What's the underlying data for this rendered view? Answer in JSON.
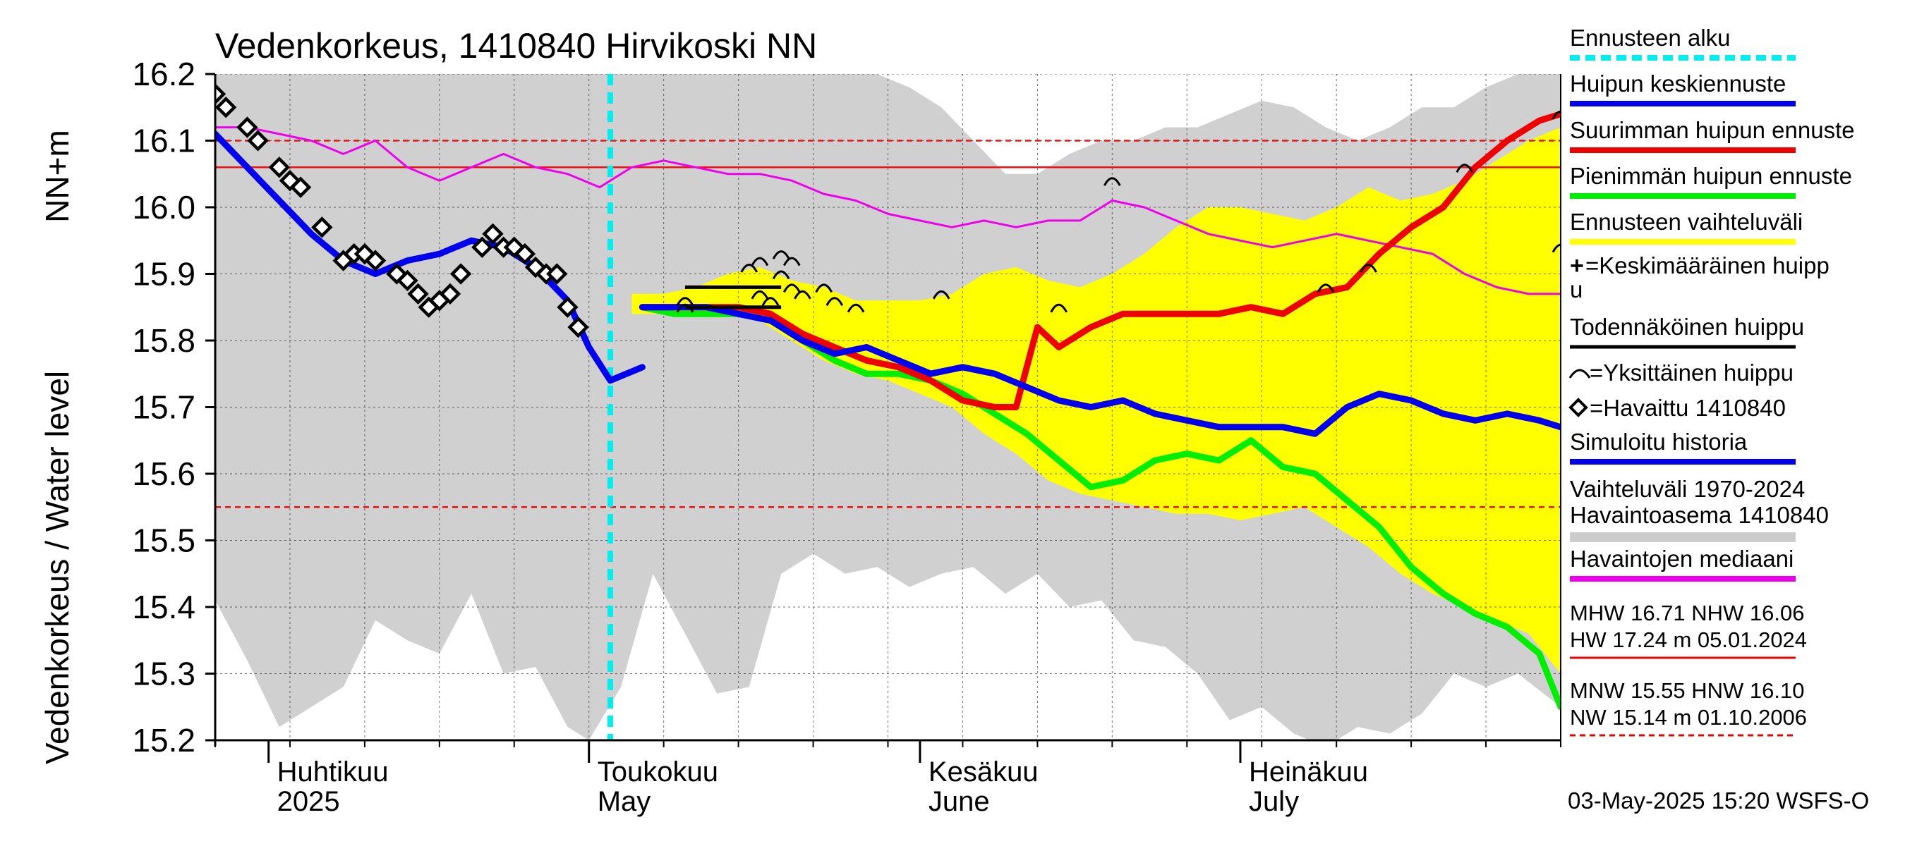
{
  "chart_data": {
    "type": "line",
    "title": "Vedenkorkeus, 1410840 Hirvikoski NN",
    "ylabel_primary": "Vedenkorkeus / Water level",
    "ylabel_unit": "NN+m",
    "y_ticks": [
      "15.2",
      "15.3",
      "15.4",
      "15.5",
      "15.6",
      "15.7",
      "15.8",
      "15.9",
      "16.0",
      "16.1",
      "16.2"
    ],
    "ylim": [
      15.2,
      16.2
    ],
    "xlim": [
      "2025-03-27",
      "2025-07-31"
    ],
    "x_month_labels": [
      {
        "fi": "Huhtikuu",
        "en": "2025",
        "date": "2025-04-01"
      },
      {
        "fi": "Toukokuu",
        "en": "May",
        "date": "2025-05-01"
      },
      {
        "fi": "Kesäkuu",
        "en": "June",
        "date": "2025-06-01"
      },
      {
        "fi": "Heinäkuu",
        "en": "July",
        "date": "2025-07-01"
      }
    ],
    "forecast_start": "2025-05-03",
    "reference_lines": [
      {
        "name": "NHW",
        "value": 16.06,
        "style": "solid",
        "color": "#ee1111"
      },
      {
        "name": "HNW",
        "value": 16.1,
        "style": "dashed",
        "color": "#ee1111"
      },
      {
        "name": "MNW",
        "value": 15.55,
        "style": "dashed",
        "color": "#ee1111"
      }
    ],
    "variation_1970_2024": {
      "dates": [
        "2025-03-27",
        "2025-03-30",
        "2025-04-02",
        "2025-04-05",
        "2025-04-08",
        "2025-04-11",
        "2025-04-14",
        "2025-04-17",
        "2025-04-20",
        "2025-04-23",
        "2025-04-26",
        "2025-04-29",
        "2025-05-01",
        "2025-05-04",
        "2025-05-07",
        "2025-05-10",
        "2025-05-13",
        "2025-05-16",
        "2025-05-19",
        "2025-05-22",
        "2025-05-25",
        "2025-05-28",
        "2025-05-31",
        "2025-06-03",
        "2025-06-06",
        "2025-06-09",
        "2025-06-12",
        "2025-06-15",
        "2025-06-18",
        "2025-06-21",
        "2025-06-24",
        "2025-06-27",
        "2025-06-30",
        "2025-07-03",
        "2025-07-06",
        "2025-07-09",
        "2025-07-12",
        "2025-07-15",
        "2025-07-18",
        "2025-07-21",
        "2025-07-24",
        "2025-07-27",
        "2025-07-31"
      ],
      "low": [
        15.41,
        15.32,
        15.22,
        15.25,
        15.28,
        15.38,
        15.35,
        15.33,
        15.42,
        15.3,
        15.31,
        15.22,
        15.2,
        15.28,
        15.45,
        15.36,
        15.27,
        15.28,
        15.45,
        15.48,
        15.45,
        15.46,
        15.43,
        15.45,
        15.46,
        15.42,
        15.45,
        15.4,
        15.41,
        15.35,
        15.34,
        15.3,
        15.23,
        15.25,
        15.21,
        15.19,
        15.22,
        15.21,
        15.24,
        15.3,
        15.28,
        15.3,
        15.25
      ],
      "high": [
        16.2,
        16.2,
        16.2,
        16.2,
        16.2,
        16.2,
        16.2,
        16.2,
        16.2,
        16.2,
        16.2,
        16.2,
        16.2,
        16.2,
        16.2,
        16.2,
        16.2,
        16.2,
        16.2,
        16.2,
        16.2,
        16.2,
        16.18,
        16.15,
        16.1,
        16.05,
        16.05,
        16.08,
        16.1,
        16.1,
        16.12,
        16.12,
        16.14,
        16.16,
        16.15,
        16.12,
        16.1,
        16.12,
        16.15,
        16.15,
        16.18,
        16.2,
        16.2
      ]
    },
    "forecast_range": {
      "dates": [
        "2025-05-05",
        "2025-05-08",
        "2025-05-11",
        "2025-05-14",
        "2025-05-17",
        "2025-05-20",
        "2025-05-23",
        "2025-05-26",
        "2025-05-29",
        "2025-06-01",
        "2025-06-04",
        "2025-06-07",
        "2025-06-10",
        "2025-06-13",
        "2025-06-16",
        "2025-06-19",
        "2025-06-22",
        "2025-06-25",
        "2025-06-28",
        "2025-07-01",
        "2025-07-04",
        "2025-07-07",
        "2025-07-10",
        "2025-07-13",
        "2025-07-16",
        "2025-07-19",
        "2025-07-22",
        "2025-07-25",
        "2025-07-28",
        "2025-07-31"
      ],
      "low": [
        15.84,
        15.84,
        15.84,
        15.84,
        15.83,
        15.8,
        15.77,
        15.75,
        15.74,
        15.72,
        15.7,
        15.66,
        15.63,
        15.59,
        15.57,
        15.56,
        15.55,
        15.54,
        15.54,
        15.53,
        15.54,
        15.55,
        15.52,
        15.49,
        15.45,
        15.42,
        15.4,
        15.38,
        15.36,
        15.3
      ],
      "high": [
        15.87,
        15.87,
        15.88,
        15.9,
        15.91,
        15.89,
        15.88,
        15.86,
        15.86,
        15.86,
        15.87,
        15.9,
        15.91,
        15.89,
        15.88,
        15.9,
        15.93,
        15.97,
        16.0,
        16.0,
        15.99,
        15.98,
        16.0,
        16.03,
        16.01,
        16.02,
        16.04,
        16.07,
        16.1,
        16.12
      ]
    },
    "series": [
      {
        "name": "Havaintojen mediaani",
        "color": "#ee00ee",
        "dates": [
          "2025-03-27",
          "2025-03-30",
          "2025-04-02",
          "2025-04-05",
          "2025-04-08",
          "2025-04-11",
          "2025-04-14",
          "2025-04-17",
          "2025-04-20",
          "2025-04-23",
          "2025-04-26",
          "2025-04-29",
          "2025-05-02",
          "2025-05-05",
          "2025-05-08",
          "2025-05-11",
          "2025-05-14",
          "2025-05-17",
          "2025-05-20",
          "2025-05-23",
          "2025-05-26",
          "2025-05-29",
          "2025-06-01",
          "2025-06-04",
          "2025-06-07",
          "2025-06-10",
          "2025-06-13",
          "2025-06-16",
          "2025-06-19",
          "2025-06-22",
          "2025-06-25",
          "2025-06-28",
          "2025-07-01",
          "2025-07-04",
          "2025-07-07",
          "2025-07-10",
          "2025-07-13",
          "2025-07-16",
          "2025-07-19",
          "2025-07-22",
          "2025-07-25",
          "2025-07-28",
          "2025-07-31"
        ],
        "values": [
          16.12,
          16.12,
          16.11,
          16.1,
          16.08,
          16.1,
          16.06,
          16.04,
          16.06,
          16.08,
          16.06,
          16.05,
          16.03,
          16.06,
          16.07,
          16.06,
          16.05,
          16.05,
          16.04,
          16.02,
          16.01,
          15.99,
          15.98,
          15.97,
          15.98,
          15.97,
          15.98,
          15.98,
          16.01,
          16.0,
          15.98,
          15.96,
          15.95,
          15.94,
          15.95,
          15.96,
          15.95,
          15.94,
          15.93,
          15.9,
          15.88,
          15.87,
          15.87
        ]
      },
      {
        "name": "Simuloitu historia",
        "color": "#0000ee",
        "dates": [
          "2025-03-27",
          "2025-03-30",
          "2025-04-02",
          "2025-04-05",
          "2025-04-08",
          "2025-04-11",
          "2025-04-14",
          "2025-04-17",
          "2025-04-20",
          "2025-04-23",
          "2025-04-26",
          "2025-04-29",
          "2025-05-01",
          "2025-05-03",
          "2025-05-06"
        ],
        "values": [
          16.11,
          16.06,
          16.01,
          15.96,
          15.92,
          15.9,
          15.92,
          15.93,
          15.95,
          15.94,
          15.91,
          15.86,
          15.79,
          15.74,
          15.76
        ]
      },
      {
        "name": "Pienimmän huipun ennuste",
        "color": "#00ee00",
        "dates": [
          "2025-05-06",
          "2025-05-09",
          "2025-05-12",
          "2025-05-15",
          "2025-05-18",
          "2025-05-21",
          "2025-05-24",
          "2025-05-27",
          "2025-05-30",
          "2025-06-02",
          "2025-06-05",
          "2025-06-08",
          "2025-06-11",
          "2025-06-14",
          "2025-06-17",
          "2025-06-20",
          "2025-06-23",
          "2025-06-26",
          "2025-06-29",
          "2025-07-02",
          "2025-07-05",
          "2025-07-08",
          "2025-07-11",
          "2025-07-14",
          "2025-07-17",
          "2025-07-20",
          "2025-07-23",
          "2025-07-26",
          "2025-07-29",
          "2025-07-31"
        ],
        "values": [
          15.85,
          15.84,
          15.84,
          15.84,
          15.83,
          15.8,
          15.77,
          15.75,
          15.75,
          15.74,
          15.72,
          15.69,
          15.66,
          15.62,
          15.58,
          15.59,
          15.62,
          15.63,
          15.62,
          15.65,
          15.61,
          15.6,
          15.56,
          15.52,
          15.46,
          15.42,
          15.39,
          15.37,
          15.33,
          15.25
        ]
      },
      {
        "name": "Suurimman huipun ennuste",
        "color": "#ee0000",
        "dates": [
          "2025-05-06",
          "2025-05-09",
          "2025-05-12",
          "2025-05-15",
          "2025-05-18",
          "2025-05-21",
          "2025-05-24",
          "2025-05-27",
          "2025-05-30",
          "2025-06-02",
          "2025-06-05",
          "2025-06-08",
          "2025-06-10",
          "2025-06-12",
          "2025-06-14",
          "2025-06-17",
          "2025-06-20",
          "2025-06-23",
          "2025-06-26",
          "2025-06-29",
          "2025-07-02",
          "2025-07-05",
          "2025-07-08",
          "2025-07-11",
          "2025-07-14",
          "2025-07-17",
          "2025-07-20",
          "2025-07-23",
          "2025-07-26",
          "2025-07-29",
          "2025-07-31"
        ],
        "values": [
          15.85,
          15.85,
          15.85,
          15.85,
          15.84,
          15.81,
          15.79,
          15.77,
          15.76,
          15.74,
          15.71,
          15.7,
          15.7,
          15.82,
          15.79,
          15.82,
          15.84,
          15.84,
          15.84,
          15.84,
          15.85,
          15.84,
          15.87,
          15.88,
          15.93,
          15.97,
          16.0,
          16.06,
          16.1,
          16.13,
          16.14
        ]
      },
      {
        "name": "Huipun keskiennuste",
        "color": "#0000ee",
        "dates": [
          "2025-05-06",
          "2025-05-09",
          "2025-05-12",
          "2025-05-15",
          "2025-05-18",
          "2025-05-21",
          "2025-05-24",
          "2025-05-27",
          "2025-05-30",
          "2025-06-02",
          "2025-06-05",
          "2025-06-08",
          "2025-06-11",
          "2025-06-14",
          "2025-06-17",
          "2025-06-20",
          "2025-06-23",
          "2025-06-26",
          "2025-06-29",
          "2025-07-02",
          "2025-07-05",
          "2025-07-08",
          "2025-07-11",
          "2025-07-14",
          "2025-07-17",
          "2025-07-20",
          "2025-07-23",
          "2025-07-26",
          "2025-07-29",
          "2025-07-31"
        ],
        "values": [
          15.85,
          15.85,
          15.85,
          15.84,
          15.83,
          15.8,
          15.78,
          15.79,
          15.77,
          15.75,
          15.76,
          15.75,
          15.73,
          15.71,
          15.7,
          15.71,
          15.69,
          15.68,
          15.67,
          15.67,
          15.67,
          15.66,
          15.7,
          15.72,
          15.71,
          15.69,
          15.68,
          15.69,
          15.68,
          15.67
        ]
      },
      {
        "name": "Havaittu 1410840",
        "color": "#000000",
        "marker": "diamond",
        "dates": [
          "2025-03-27",
          "2025-03-28",
          "2025-03-30",
          "2025-03-31",
          "2025-04-02",
          "2025-04-03",
          "2025-04-04",
          "2025-04-06",
          "2025-04-08",
          "2025-04-09",
          "2025-04-10",
          "2025-04-11",
          "2025-04-13",
          "2025-04-14",
          "2025-04-15",
          "2025-04-16",
          "2025-04-17",
          "2025-04-18",
          "2025-04-19",
          "2025-04-21",
          "2025-04-22",
          "2025-04-23",
          "2025-04-24",
          "2025-04-25",
          "2025-04-26",
          "2025-04-27",
          "2025-04-28",
          "2025-04-29",
          "2025-04-30"
        ],
        "values": [
          16.17,
          16.15,
          16.12,
          16.1,
          16.06,
          16.04,
          16.03,
          15.97,
          15.92,
          15.93,
          15.93,
          15.92,
          15.9,
          15.89,
          15.87,
          15.85,
          15.86,
          15.87,
          15.9,
          15.94,
          15.96,
          15.94,
          15.94,
          15.93,
          15.91,
          15.9,
          15.9,
          15.85,
          15.82
        ]
      },
      {
        "name": "Todennäköinen huippu",
        "color": "#000000",
        "segments": [
          {
            "from": "2025-05-10",
            "to": "2025-05-19",
            "value": 15.88
          },
          {
            "from": "2025-05-10",
            "to": "2025-05-19",
            "value": 15.85
          }
        ]
      },
      {
        "name": "Yksittäinen huippu",
        "color": "#000000",
        "marker": "arc",
        "points": [
          {
            "date": "2025-05-10",
            "value": 15.86
          },
          {
            "date": "2025-05-10",
            "value": 15.85
          },
          {
            "date": "2025-05-16",
            "value": 15.91
          },
          {
            "date": "2025-05-17",
            "value": 15.92
          },
          {
            "date": "2025-05-19",
            "value": 15.93
          },
          {
            "date": "2025-05-20",
            "value": 15.92
          },
          {
            "date": "2025-05-19",
            "value": 15.9
          },
          {
            "date": "2025-05-20",
            "value": 15.88
          },
          {
            "date": "2025-05-21",
            "value": 15.87
          },
          {
            "date": "2025-05-23",
            "value": 15.88
          },
          {
            "date": "2025-05-17",
            "value": 15.87
          },
          {
            "date": "2025-05-18",
            "value": 15.86
          },
          {
            "date": "2025-05-24",
            "value": 15.86
          },
          {
            "date": "2025-05-26",
            "value": 15.85
          },
          {
            "date": "2025-06-03",
            "value": 15.87
          },
          {
            "date": "2025-06-14",
            "value": 15.85
          },
          {
            "date": "2025-06-19",
            "value": 16.04
          },
          {
            "date": "2025-07-09",
            "value": 15.88
          },
          {
            "date": "2025-07-13",
            "value": 15.91
          },
          {
            "date": "2025-07-22",
            "value": 16.06
          },
          {
            "date": "2025-07-31",
            "value": 15.94
          },
          {
            "date": "2025-07-31",
            "value": 16.14
          }
        ]
      }
    ],
    "legend": [
      {
        "label": "Ennusteen alku",
        "color": "#00eeee",
        "style": "dashed"
      },
      {
        "label": "Huipun keskiennuste",
        "color": "#0000ee",
        "style": "line"
      },
      {
        "label": "Suurimman huipun ennuste",
        "color": "#ee0000",
        "style": "line"
      },
      {
        "label": "Pienimmän huipun ennuste",
        "color": "#00ee00",
        "style": "line"
      },
      {
        "label": "Ennusteen vaihteluväli",
        "color": "#ffff00",
        "style": "line"
      },
      {
        "label": "=Keskimääräinen huipp",
        "label2": "u",
        "color": "#000000",
        "style": "plus"
      },
      {
        "label": "Todennäköinen huippu",
        "color": "#000000",
        "style": "line"
      },
      {
        "label": "=Yksittäinen huippu",
        "color": "#000000",
        "style": "arc"
      },
      {
        "label": "=Havaittu 1410840",
        "color": "#000000",
        "style": "diamond"
      },
      {
        "label": "Simuloitu historia",
        "color": "#0000ee",
        "style": "line"
      },
      {
        "label": "Vaihteluväli 1970-2024",
        "label2": " Havaintoasema 1410840",
        "color": "#cccccc",
        "style": "thick"
      },
      {
        "label": "Havaintojen mediaani",
        "color": "#ee00ee",
        "style": "line"
      }
    ],
    "stats": [
      {
        "line1": "MHW  16.71 NHW  16.06",
        "line2": "HW  17.24 m 05.01.2024",
        "color": "#ee0000",
        "style": "solid"
      },
      {
        "line1": "MNW  15.55 HNW  16.10",
        "line2": "NW  15.14 m 01.10.2006",
        "color": "#ee0000",
        "style": "dashed"
      }
    ],
    "footer": "03-May-2025 15:20 WSFS-O",
    "grid": true
  }
}
